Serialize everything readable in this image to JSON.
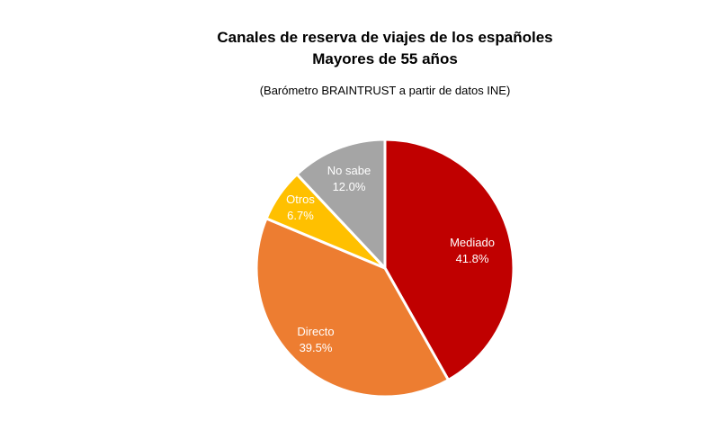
{
  "chart_data": {
    "type": "pie",
    "title": "Canales de reserva de viajes de los españoles",
    "subtitle_line": "Mayores de 55 años",
    "source_note": "(Barómetro BRAINTRUST a partir de datos INE)",
    "start_angle_deg": 0,
    "direction": "clockwise",
    "slices": [
      {
        "label": "Mediado",
        "value": 41.8,
        "value_label": "41.8%",
        "color": "#C00000"
      },
      {
        "label": "Directo",
        "value": 39.5,
        "value_label": "39.5%",
        "color": "#ED7D31"
      },
      {
        "label": "Otros",
        "value": 6.7,
        "value_label": "6.7%",
        "color": "#FFC000"
      },
      {
        "label": "No sabe",
        "value": 12.0,
        "value_label": "12.0%",
        "color": "#A5A5A5"
      }
    ],
    "slice_border_color": "#FFFFFF",
    "label_color": "#FFFFFF"
  }
}
